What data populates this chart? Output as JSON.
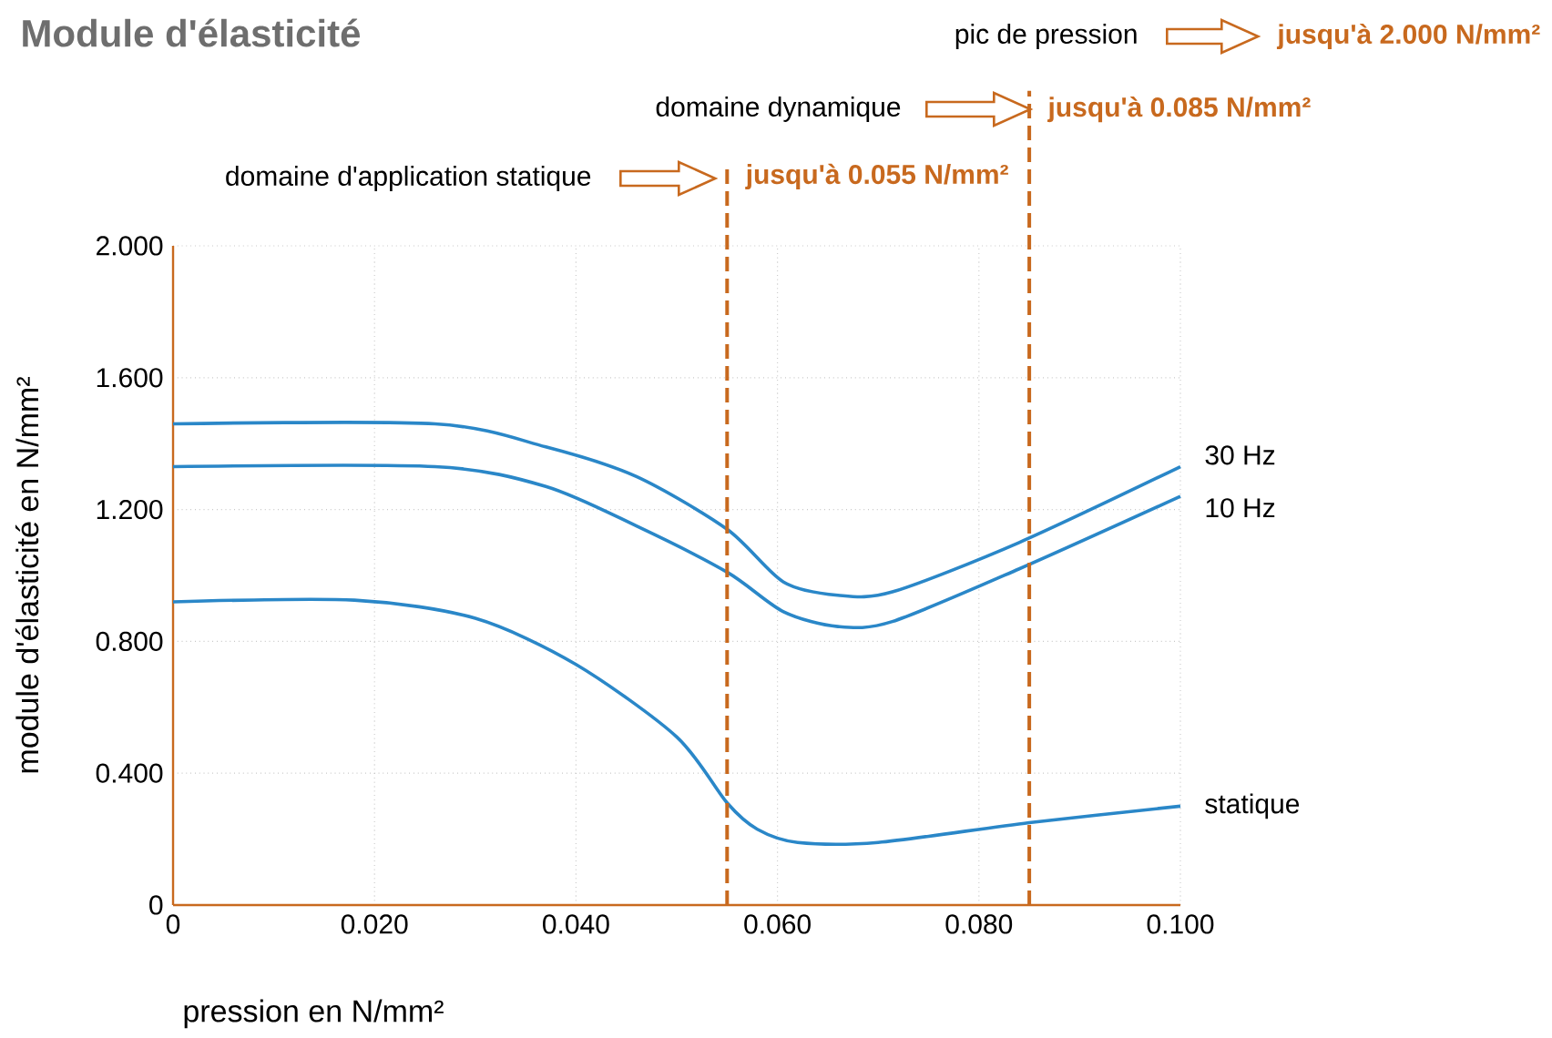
{
  "chart_data": {
    "type": "line",
    "title": "Module d'élasticité",
    "xlabel": "pression en N/mm²",
    "ylabel": "module d'élasticité en N/mm²",
    "xlim": [
      0,
      0.1
    ],
    "ylim": [
      0,
      2
    ],
    "xticks": [
      0,
      {
        "value": 0.02,
        "label": "0.020"
      },
      {
        "value": 0.04,
        "label": "0.040"
      },
      {
        "value": 0.06,
        "label": "0.060"
      },
      {
        "value": 0.08,
        "label": "0.080"
      },
      {
        "value": 0.1,
        "label": "0.100"
      }
    ],
    "yticks": [
      0,
      {
        "value": 0.4,
        "label": "0.400"
      },
      {
        "value": 0.8,
        "label": "0.800"
      },
      {
        "value": 1.2,
        "label": "1.200"
      },
      {
        "value": 1.6,
        "label": "1.600"
      },
      {
        "value": 2,
        "label": "2.000"
      }
    ],
    "grid": true,
    "line_style": "solid",
    "series": [
      {
        "name": "30 Hz",
        "color": "#2a87c8",
        "x": [
          0,
          0.026,
          0.037,
          0.046,
          0.055,
          0.0606,
          0.066,
          0.0714,
          0.084,
          0.1
        ],
        "values": [
          1.46,
          1.46,
          1.39,
          1.3,
          1.14,
          0.98,
          0.94,
          0.95,
          1.1,
          1.33
        ]
      },
      {
        "name": "10 Hz",
        "color": "#2a87c8",
        "x": [
          0,
          0.026,
          0.037,
          0.046,
          0.055,
          0.0606,
          0.066,
          0.0714,
          0.084,
          0.1
        ],
        "values": [
          1.33,
          1.33,
          1.27,
          1.15,
          1.01,
          0.89,
          0.845,
          0.86,
          1.02,
          1.24
        ]
      },
      {
        "name": "statique",
        "color": "#2a87c8",
        "x": [
          0,
          0.018,
          0.03,
          0.04,
          0.05,
          0.055,
          0.058,
          0.062,
          0.07,
          0.085,
          0.1
        ],
        "values": [
          0.92,
          0.925,
          0.87,
          0.73,
          0.51,
          0.31,
          0.23,
          0.19,
          0.19,
          0.25,
          0.3
        ]
      }
    ],
    "ref_lines": [
      {
        "axis": "x",
        "value": 0.055,
        "label": "jusqu'à 0.055 N/mm²",
        "color": "#c8691e",
        "line_style": "dashed"
      },
      {
        "axis": "x",
        "value": 0.085,
        "label": "jusqu'à 0.085 N/mm²",
        "color": "#c8691e",
        "line_style": "dashed"
      }
    ],
    "annotations": [
      "domaine d'application statique",
      "domaine dynamique",
      "pic de pression",
      "jusqu'à 2.000 N/mm²"
    ]
  }
}
